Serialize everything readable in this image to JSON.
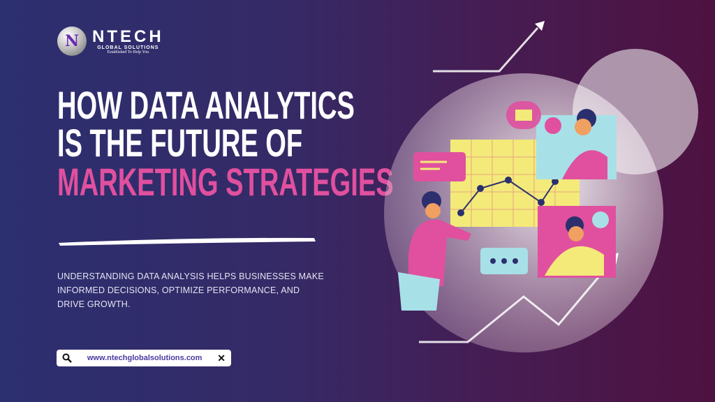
{
  "logo": {
    "brand": "NTECH",
    "subtitle": "GLOBAL SOLUTIONS",
    "tagline": "Established To Help You",
    "mark": "N"
  },
  "headline": {
    "line1": "HOW DATA ANALYTICS",
    "line2": "IS THE FUTURE OF",
    "line3": "MARKETING STRATEGIES"
  },
  "description": "UNDERSTANDING DATA ANALYSIS HELPS BUSINESSES MAKE INFORMED DECISIONS, OPTIMIZE PERFORMANCE, AND DRIVE GROWTH.",
  "search": {
    "value": "www.ntechglobalsolutions.com",
    "icon": "search-icon",
    "clear_icon": "close-icon"
  },
  "colors": {
    "accent": "#e0509e",
    "bg_left": "#2c2f70",
    "bg_right": "#4e1240",
    "url": "#4b3aa0"
  }
}
